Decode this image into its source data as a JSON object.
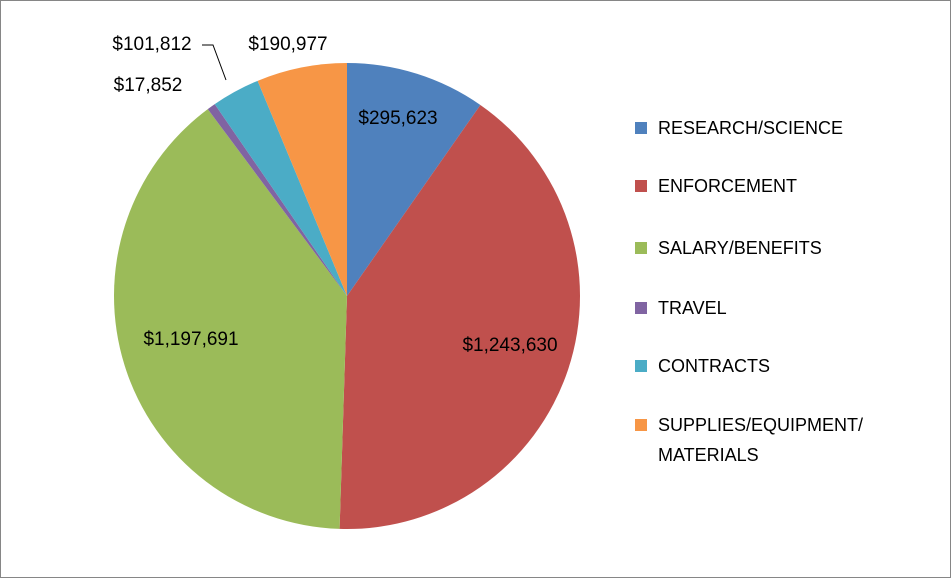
{
  "chart_data": {
    "type": "pie",
    "categories": [
      "RESEARCH/SCIENCE",
      "ENFORCEMENT",
      "SALARY/BENEFITS",
      "TRAVEL",
      "CONTRACTS",
      "SUPPLIES/EQUIPMENT/ MATERIALS"
    ],
    "values": [
      295623,
      1243630,
      1197691,
      17852,
      101812,
      190977
    ],
    "value_labels": [
      "$295,623",
      "$1,243,630",
      "$1,197,691",
      "$17,852",
      "$101,812",
      "$190,977"
    ],
    "colors": [
      "#4f81bd",
      "#c0504d",
      "#9bbb59",
      "#8064a2",
      "#4bacc6",
      "#f79646"
    ],
    "legend": "right"
  }
}
